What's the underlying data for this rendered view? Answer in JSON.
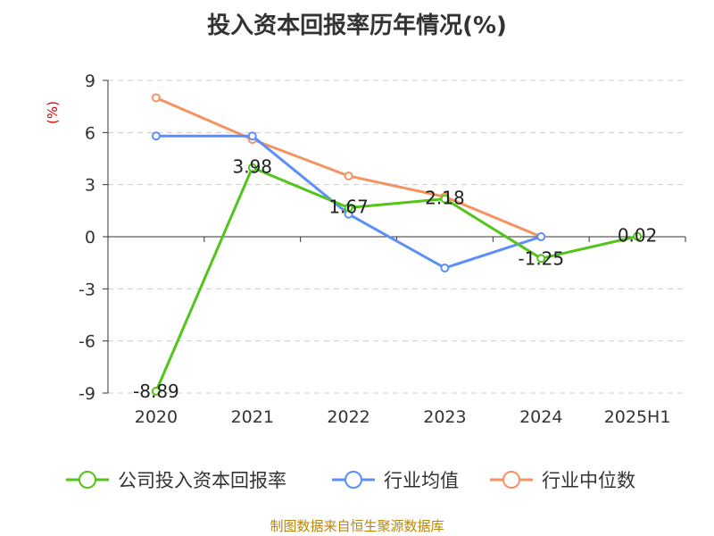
{
  "chart_data": {
    "type": "line",
    "title": "投入资本回报率历年情况(%)",
    "ylabel": "(%)",
    "xlabel": "",
    "categories": [
      "2020",
      "2021",
      "2022",
      "2023",
      "2024",
      "2025H1"
    ],
    "ylim": [
      -9,
      9
    ],
    "yticks": [
      9,
      6,
      3,
      0,
      -3,
      -6,
      -9
    ],
    "grid": true,
    "legend_position": "bottom",
    "series": [
      {
        "name": "公司投入资本回报率",
        "color": "#52c41a",
        "values": [
          -8.89,
          3.98,
          1.67,
          2.18,
          -1.25,
          0.02
        ],
        "labels": [
          "-8.89",
          "3.98",
          "1.67",
          "2.18",
          "-1.25",
          "0.02"
        ]
      },
      {
        "name": "行业均值",
        "color": "#5b8ff9",
        "values": [
          5.8,
          5.8,
          1.3,
          -1.8,
          0,
          null
        ]
      },
      {
        "name": "行业中位数",
        "color": "#f6925f",
        "values": [
          8.0,
          5.6,
          3.5,
          2.3,
          0,
          null
        ]
      }
    ]
  },
  "footer": {
    "source": "制图数据来自恒生聚源数据库"
  }
}
